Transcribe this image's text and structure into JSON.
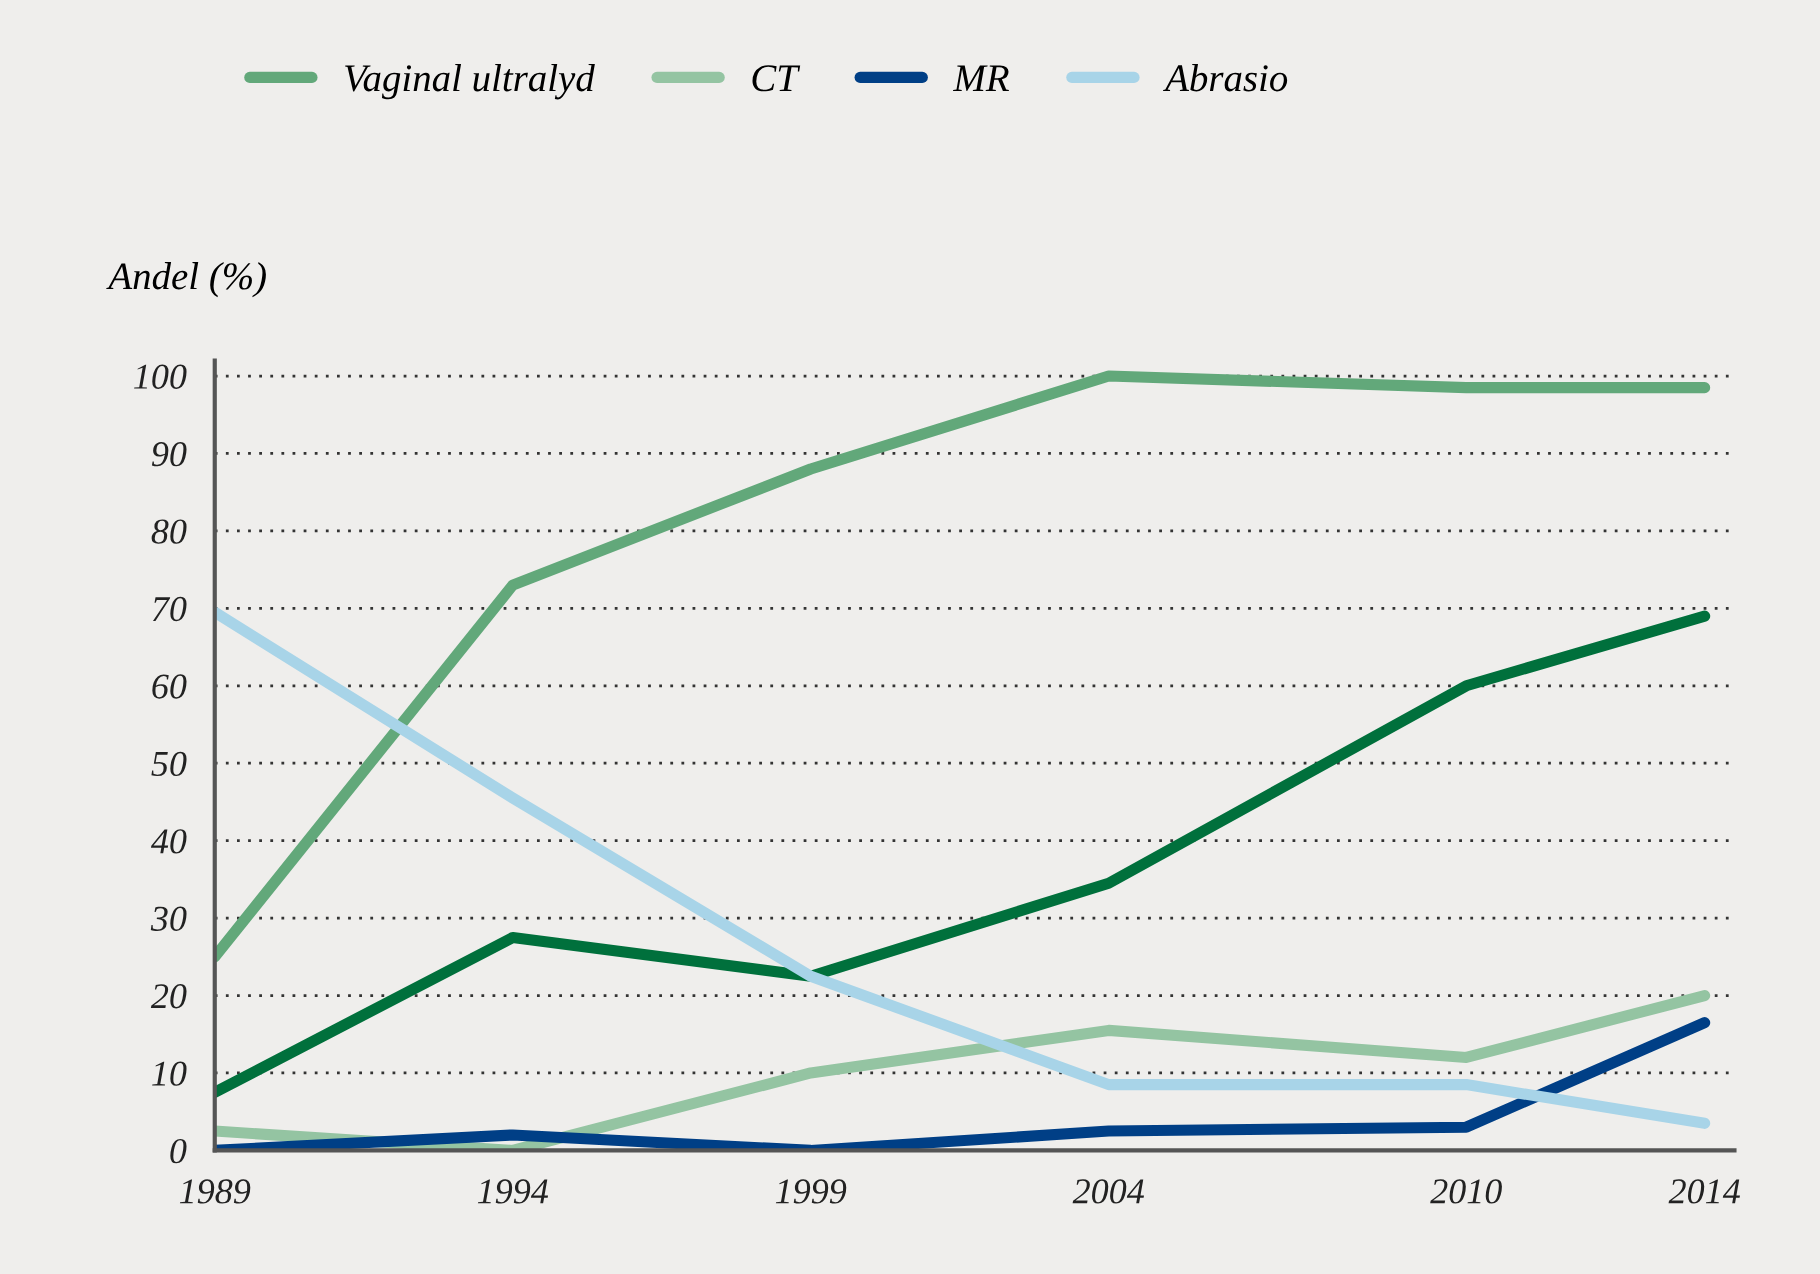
{
  "chart_data": {
    "type": "line",
    "ylabel": "Andel (%)",
    "x": [
      1989,
      1994,
      1999,
      2004,
      2010,
      2014
    ],
    "series": [
      {
        "color": "#00703c",
        "values": [
          7.5,
          27.5,
          22.5,
          34.5,
          60,
          69
        ]
      },
      {
        "name": "Vaginal ultralyd",
        "color": "#62a87a",
        "values": [
          25,
          73,
          88,
          100,
          98.5,
          98.5
        ]
      },
      {
        "name": "CT",
        "color": "#94c4a2",
        "values": [
          2.5,
          0,
          10,
          15.5,
          12,
          20
        ]
      },
      {
        "name": "MR",
        "color": "#003f86",
        "values": [
          0,
          2,
          0,
          2.5,
          3,
          16.5
        ]
      },
      {
        "name": "Abrasio",
        "color": "#a8d4e8",
        "values": [
          69.5,
          45.5,
          22.5,
          8.5,
          8.5,
          3.5
        ]
      }
    ],
    "xlim": [
      1989,
      2014.5
    ],
    "xticks": [
      1989,
      1994,
      1999,
      2004,
      2010,
      2014
    ],
    "ylim": [
      0,
      102
    ],
    "yticks": [
      0,
      10,
      20,
      30,
      40,
      50,
      60,
      70,
      80,
      90,
      100
    ],
    "grid": "y",
    "legend": "top left",
    "line_style": "solid",
    "marker": "none"
  }
}
